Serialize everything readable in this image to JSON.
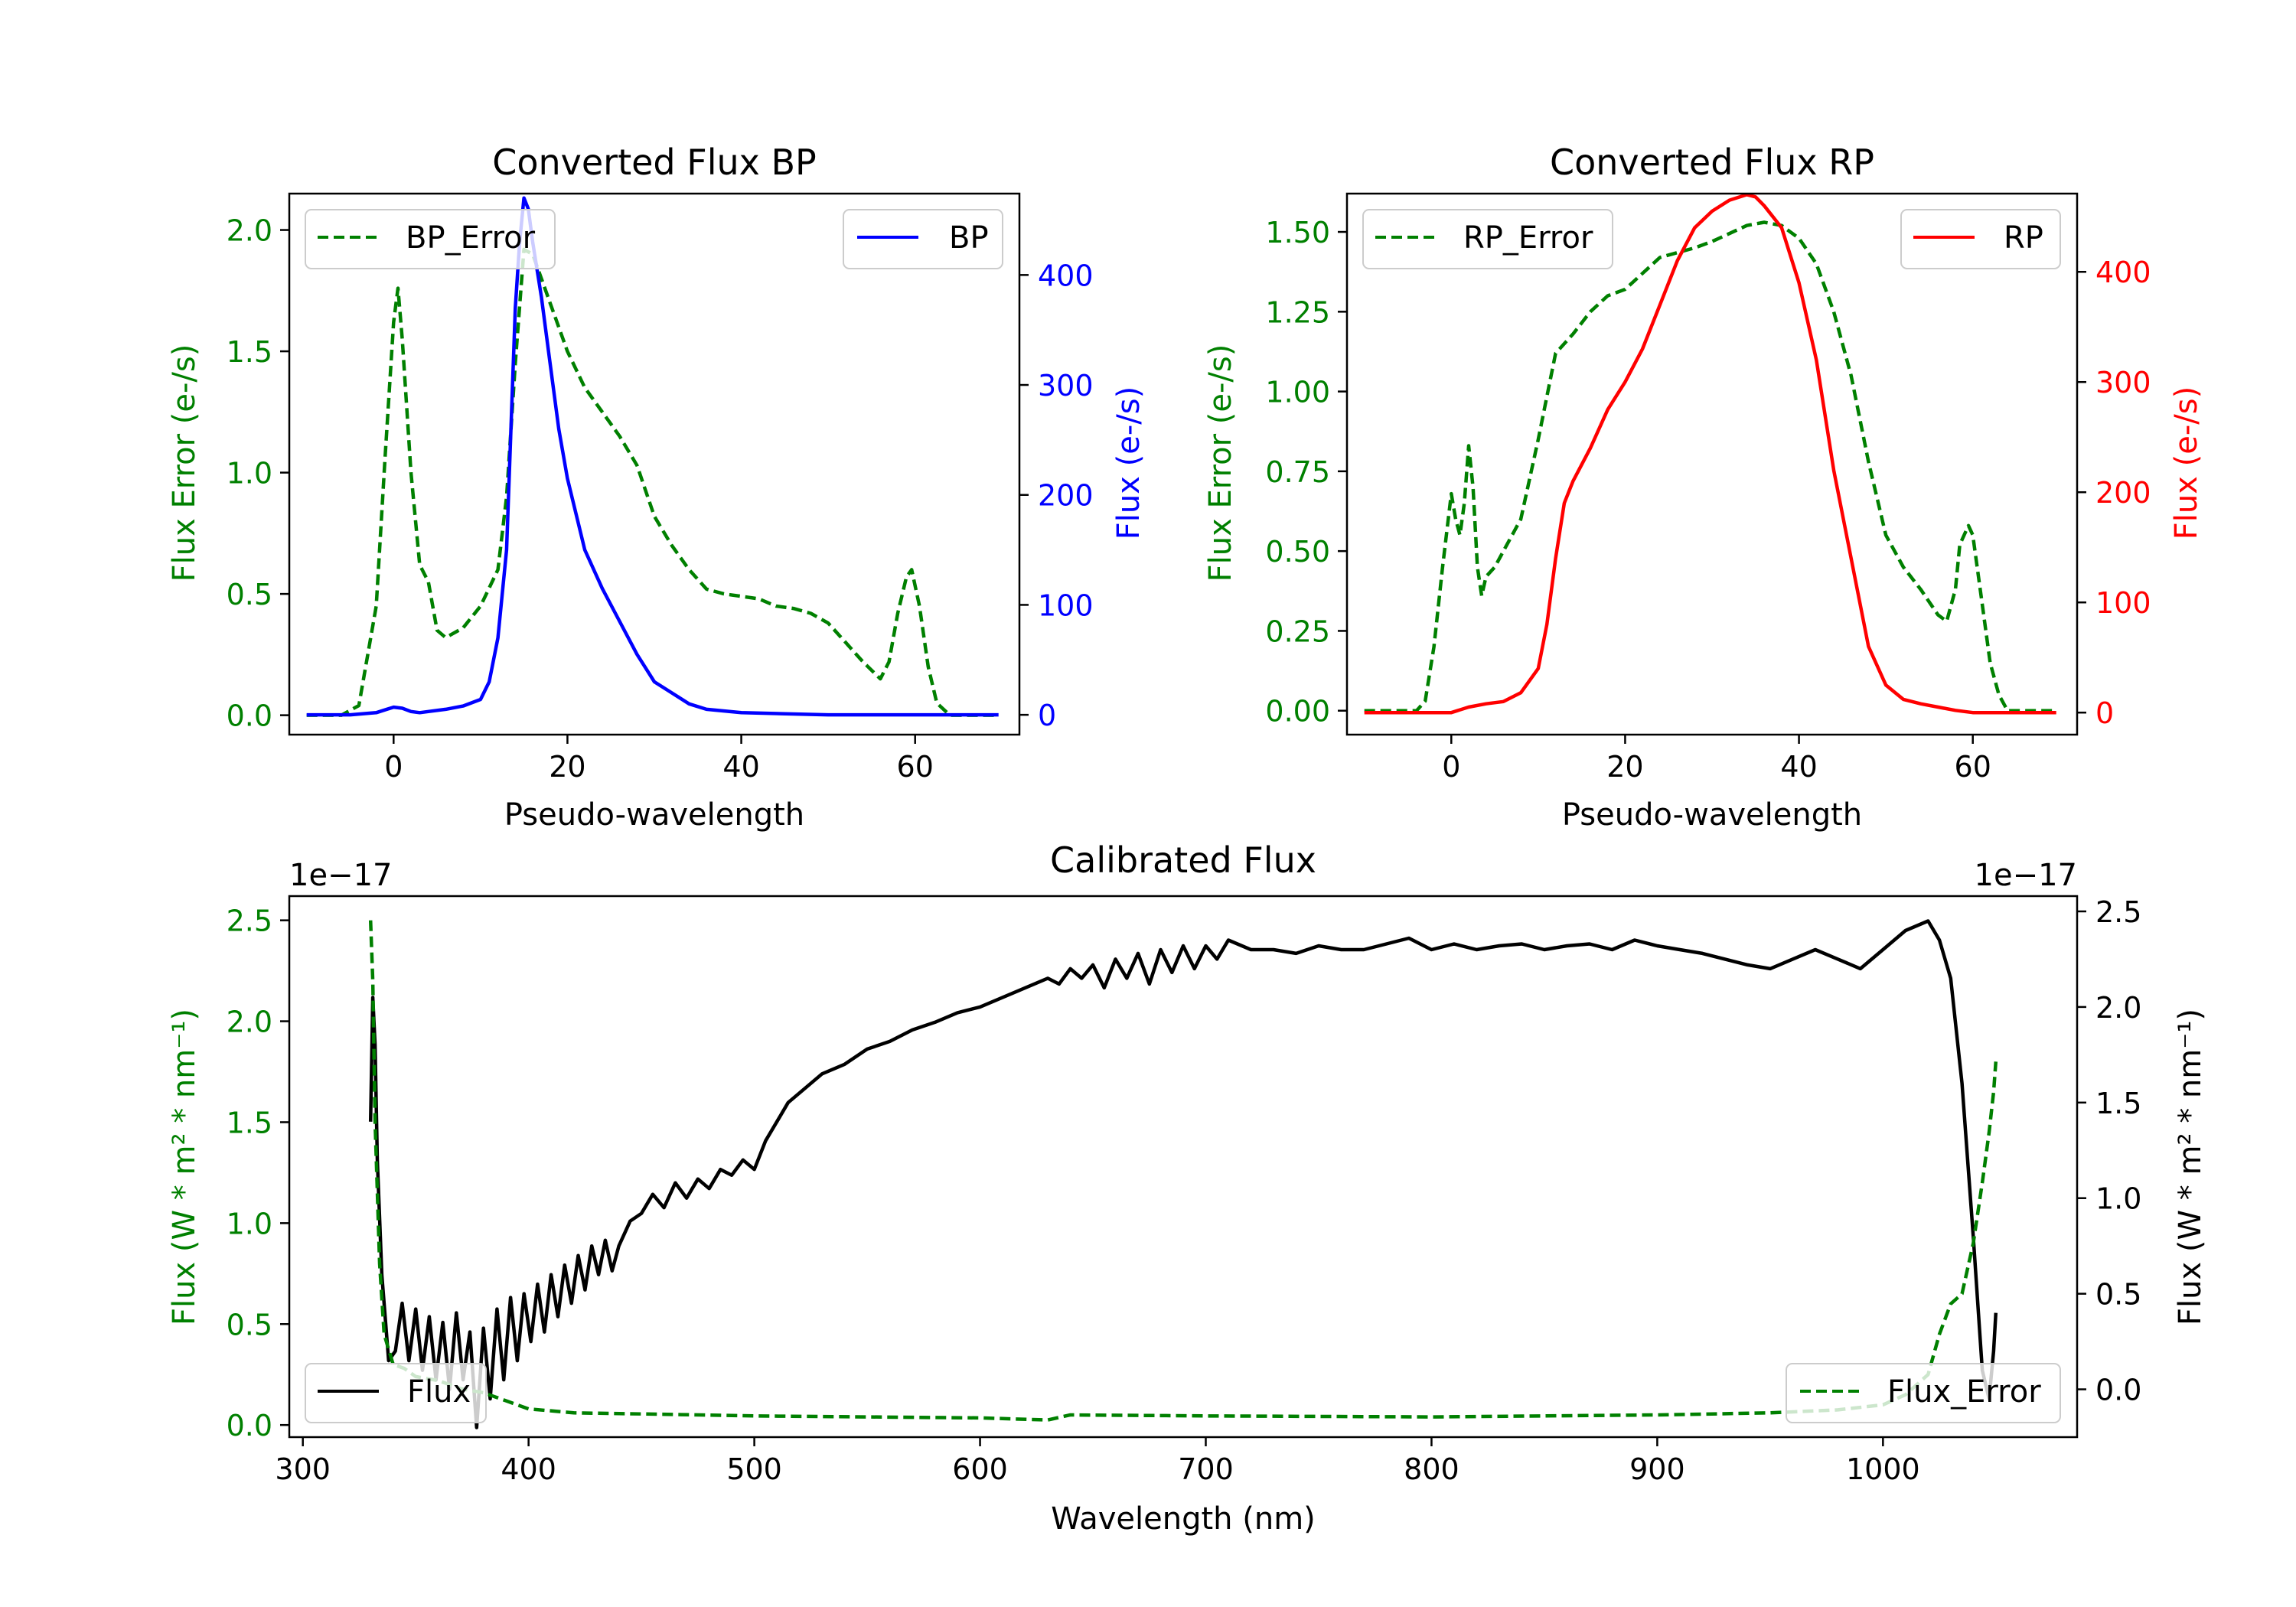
{
  "chart_data": [
    {
      "type": "line",
      "id": "bp",
      "title": "Converted Flux BP",
      "xlabel": "Pseudo-wavelength",
      "ylabel_left": "Flux Error (e-/s)",
      "ylabel_right": "Flux (e-/s)",
      "xlim": [
        -12,
        72
      ],
      "ylim_left": [
        -0.08,
        2.15
      ],
      "ylim_right": [
        -18,
        474
      ],
      "xticks": [
        0,
        20,
        40,
        60
      ],
      "yticks_left": [
        "0.0",
        "0.5",
        "1.0",
        "1.5",
        "2.0"
      ],
      "yticks_right": [
        "0",
        "100",
        "200",
        "300",
        "400"
      ],
      "left_color": "#008000",
      "right_color": "#0000ff",
      "series": [
        {
          "name": "BP_Error",
          "axis": "left",
          "style": "dashed",
          "color": "#008000",
          "legend": "top-left",
          "x": [
            -10,
            -6,
            -4,
            -2,
            -1,
            0,
            0.5,
            1,
            2,
            3,
            4,
            5,
            6,
            8,
            10,
            12,
            13,
            14,
            15,
            16,
            17,
            18,
            20,
            22,
            24,
            26,
            28,
            30,
            32,
            34,
            36,
            38,
            40,
            42,
            44,
            46,
            48,
            50,
            52,
            54,
            56,
            57,
            58,
            59,
            59.6,
            60.5,
            61.5,
            62.5,
            64,
            66,
            69.6
          ],
          "y": [
            0.0,
            0.0,
            0.04,
            0.45,
            1.05,
            1.62,
            1.76,
            1.55,
            1.0,
            0.62,
            0.55,
            0.35,
            0.32,
            0.36,
            0.45,
            0.6,
            0.9,
            1.45,
            1.92,
            1.9,
            1.8,
            1.7,
            1.5,
            1.35,
            1.25,
            1.15,
            1.03,
            0.82,
            0.7,
            0.6,
            0.52,
            0.5,
            0.49,
            0.48,
            0.45,
            0.44,
            0.42,
            0.38,
            0.3,
            0.22,
            0.15,
            0.22,
            0.42,
            0.57,
            0.6,
            0.45,
            0.2,
            0.05,
            0.0,
            0.0,
            0.0
          ]
        },
        {
          "name": "BP",
          "axis": "right",
          "style": "solid",
          "color": "#0000ff",
          "legend": "top-right",
          "x": [
            -10,
            -5,
            -2,
            0,
            1,
            2,
            3,
            4,
            6,
            8,
            10,
            11,
            12,
            13,
            13.5,
            14,
            14.5,
            15,
            15.5,
            16,
            17,
            18,
            19,
            20,
            22,
            24,
            26,
            28,
            30,
            32,
            34,
            36,
            40,
            45,
            50,
            55,
            60,
            65,
            69.6
          ],
          "y": [
            0,
            0,
            2,
            7,
            6,
            3,
            2,
            3,
            5,
            8,
            14,
            30,
            70,
            150,
            260,
            370,
            430,
            470,
            460,
            430,
            380,
            320,
            260,
            215,
            150,
            115,
            85,
            55,
            30,
            20,
            10,
            5,
            2,
            1,
            0,
            0,
            0,
            0,
            0
          ]
        }
      ]
    },
    {
      "type": "line",
      "id": "rp",
      "title": "Converted Flux RP",
      "xlabel": "Pseudo-wavelength",
      "ylabel_left": "Flux Error (e-/s)",
      "ylabel_right": "Flux (e-/s)",
      "xlim": [
        -12,
        72
      ],
      "ylim_left": [
        -0.075,
        1.62
      ],
      "ylim_right": [
        -20,
        471
      ],
      "xticks": [
        0,
        20,
        40,
        60
      ],
      "yticks_left": [
        "0.00",
        "0.25",
        "0.50",
        "0.75",
        "1.00",
        "1.25",
        "1.50"
      ],
      "yticks_right": [
        "0",
        "100",
        "200",
        "300",
        "400"
      ],
      "left_color": "#008000",
      "right_color": "#ff0000",
      "series": [
        {
          "name": "RP_Error",
          "axis": "left",
          "style": "dashed",
          "color": "#008000",
          "legend": "top-left",
          "x": [
            -10,
            -4,
            -3,
            -2,
            -1,
            0,
            0.5,
            1,
            1.5,
            2,
            2.5,
            3,
            3.5,
            4,
            5,
            6,
            8,
            10,
            12,
            14,
            16,
            18,
            20,
            24,
            28,
            30,
            34,
            36,
            38,
            40,
            42,
            44,
            46,
            48,
            50,
            52,
            54,
            56,
            57,
            58,
            58.5,
            59.5,
            60,
            61,
            62,
            63,
            64,
            69.6
          ],
          "y": [
            0.0,
            0.0,
            0.03,
            0.2,
            0.45,
            0.68,
            0.6,
            0.55,
            0.65,
            0.83,
            0.7,
            0.45,
            0.36,
            0.42,
            0.45,
            0.5,
            0.6,
            0.85,
            1.12,
            1.18,
            1.25,
            1.3,
            1.32,
            1.42,
            1.45,
            1.47,
            1.52,
            1.53,
            1.52,
            1.48,
            1.4,
            1.25,
            1.05,
            0.78,
            0.55,
            0.45,
            0.38,
            0.3,
            0.28,
            0.38,
            0.52,
            0.58,
            0.55,
            0.35,
            0.15,
            0.05,
            0.0,
            0.0
          ]
        },
        {
          "name": "RP",
          "axis": "right",
          "style": "solid",
          "color": "#ff0000",
          "legend": "top-right",
          "x": [
            -10,
            -2,
            0,
            2,
            4,
            6,
            8,
            10,
            11,
            12,
            13,
            14,
            16,
            18,
            20,
            22,
            24,
            26,
            28,
            30,
            32,
            34,
            35,
            36,
            38,
            40,
            42,
            44,
            46,
            48,
            50,
            52,
            54,
            56,
            58,
            60,
            62,
            64,
            66,
            69.6
          ],
          "y": [
            0,
            0,
            0,
            5,
            8,
            10,
            18,
            40,
            80,
            140,
            190,
            210,
            240,
            275,
            300,
            330,
            370,
            410,
            440,
            455,
            465,
            470,
            468,
            460,
            440,
            390,
            320,
            220,
            140,
            60,
            25,
            12,
            8,
            5,
            2,
            0,
            0,
            0,
            0,
            0
          ]
        }
      ]
    },
    {
      "type": "line",
      "id": "cal",
      "title": "Calibrated Flux",
      "xlabel": "Wavelength (nm)",
      "ylabel_left": "Flux (W * m² * nm⁻¹)",
      "ylabel_right": "Flux (W * m² * nm⁻¹)",
      "offset_left": "1e−17",
      "offset_right": "1e−17",
      "xlim": [
        294,
        1086
      ],
      "ylim_left": [
        -0.06,
        2.62
      ],
      "ylim_right": [
        -0.25,
        2.58
      ],
      "xticks": [
        300,
        400,
        500,
        600,
        700,
        800,
        900,
        1000
      ],
      "yticks_left": [
        "0.0",
        "0.5",
        "1.0",
        "1.5",
        "2.0",
        "2.5"
      ],
      "yticks_right": [
        "0.0",
        "0.5",
        "1.0",
        "1.5",
        "2.0",
        "2.5"
      ],
      "left_color": "#008000",
      "right_color": "#000000",
      "series": [
        {
          "name": "Flux",
          "axis": "right",
          "style": "solid",
          "color": "#000000",
          "legend": "bottom-left",
          "x": [
            330,
            331,
            332,
            333,
            335,
            338,
            341,
            344,
            347,
            350,
            353,
            356,
            359,
            362,
            365,
            368,
            371,
            374,
            377,
            380,
            383,
            386,
            389,
            392,
            395,
            398,
            401,
            404,
            407,
            410,
            413,
            416,
            419,
            422,
            425,
            428,
            431,
            434,
            437,
            440,
            445,
            450,
            455,
            460,
            465,
            470,
            475,
            480,
            485,
            490,
            495,
            500,
            505,
            510,
            515,
            520,
            530,
            540,
            550,
            560,
            570,
            580,
            590,
            600,
            610,
            620,
            630,
            635,
            640,
            645,
            650,
            655,
            660,
            665,
            670,
            675,
            680,
            685,
            690,
            695,
            700,
            705,
            710,
            720,
            730,
            740,
            750,
            760,
            770,
            780,
            790,
            800,
            810,
            820,
            830,
            840,
            850,
            860,
            870,
            880,
            890,
            900,
            910,
            920,
            930,
            940,
            950,
            960,
            970,
            980,
            990,
            1000,
            1010,
            1020,
            1025,
            1030,
            1035,
            1040,
            1044,
            1047,
            1049,
            1050
          ],
          "y": [
            1.4,
            2.05,
            1.8,
            1.2,
            0.6,
            0.15,
            0.2,
            0.45,
            0.15,
            0.42,
            0.1,
            0.38,
            0.05,
            0.35,
            0.0,
            0.4,
            0.05,
            0.3,
            -0.2,
            0.32,
            -0.05,
            0.42,
            0.05,
            0.48,
            0.15,
            0.5,
            0.25,
            0.55,
            0.3,
            0.6,
            0.38,
            0.65,
            0.45,
            0.7,
            0.52,
            0.75,
            0.6,
            0.78,
            0.62,
            0.75,
            0.88,
            0.92,
            1.02,
            0.95,
            1.08,
            1.0,
            1.1,
            1.05,
            1.15,
            1.12,
            1.2,
            1.15,
            1.3,
            1.4,
            1.5,
            1.55,
            1.65,
            1.7,
            1.78,
            1.82,
            1.88,
            1.92,
            1.97,
            2.0,
            2.05,
            2.1,
            2.15,
            2.12,
            2.2,
            2.15,
            2.22,
            2.1,
            2.25,
            2.15,
            2.28,
            2.12,
            2.3,
            2.18,
            2.32,
            2.2,
            2.32,
            2.25,
            2.35,
            2.3,
            2.3,
            2.28,
            2.32,
            2.3,
            2.3,
            2.33,
            2.36,
            2.3,
            2.33,
            2.3,
            2.32,
            2.33,
            2.3,
            2.32,
            2.33,
            2.3,
            2.35,
            2.32,
            2.3,
            2.28,
            2.25,
            2.22,
            2.2,
            2.25,
            2.3,
            2.25,
            2.2,
            2.3,
            2.4,
            2.45,
            2.35,
            2.15,
            1.6,
            0.8,
            0.1,
            -0.05,
            0.2,
            0.4
          ]
        },
        {
          "name": "Flux_Error",
          "axis": "left",
          "style": "dashed",
          "color": "#008000",
          "legend": "bottom-right",
          "x": [
            330,
            331,
            332,
            334,
            336,
            340,
            345,
            350,
            360,
            370,
            380,
            390,
            400,
            420,
            450,
            500,
            550,
            600,
            630,
            640,
            700,
            800,
            900,
            950,
            980,
            1000,
            1010,
            1020,
            1025,
            1030,
            1035,
            1040,
            1044,
            1047,
            1049,
            1050
          ],
          "y": [
            2.5,
            2.2,
            1.5,
            0.8,
            0.45,
            0.3,
            0.28,
            0.24,
            0.22,
            0.18,
            0.16,
            0.12,
            0.08,
            0.06,
            0.055,
            0.045,
            0.04,
            0.035,
            0.025,
            0.05,
            0.045,
            0.04,
            0.05,
            0.06,
            0.075,
            0.1,
            0.15,
            0.25,
            0.45,
            0.6,
            0.65,
            0.9,
            1.2,
            1.45,
            1.65,
            1.8
          ]
        }
      ]
    }
  ]
}
